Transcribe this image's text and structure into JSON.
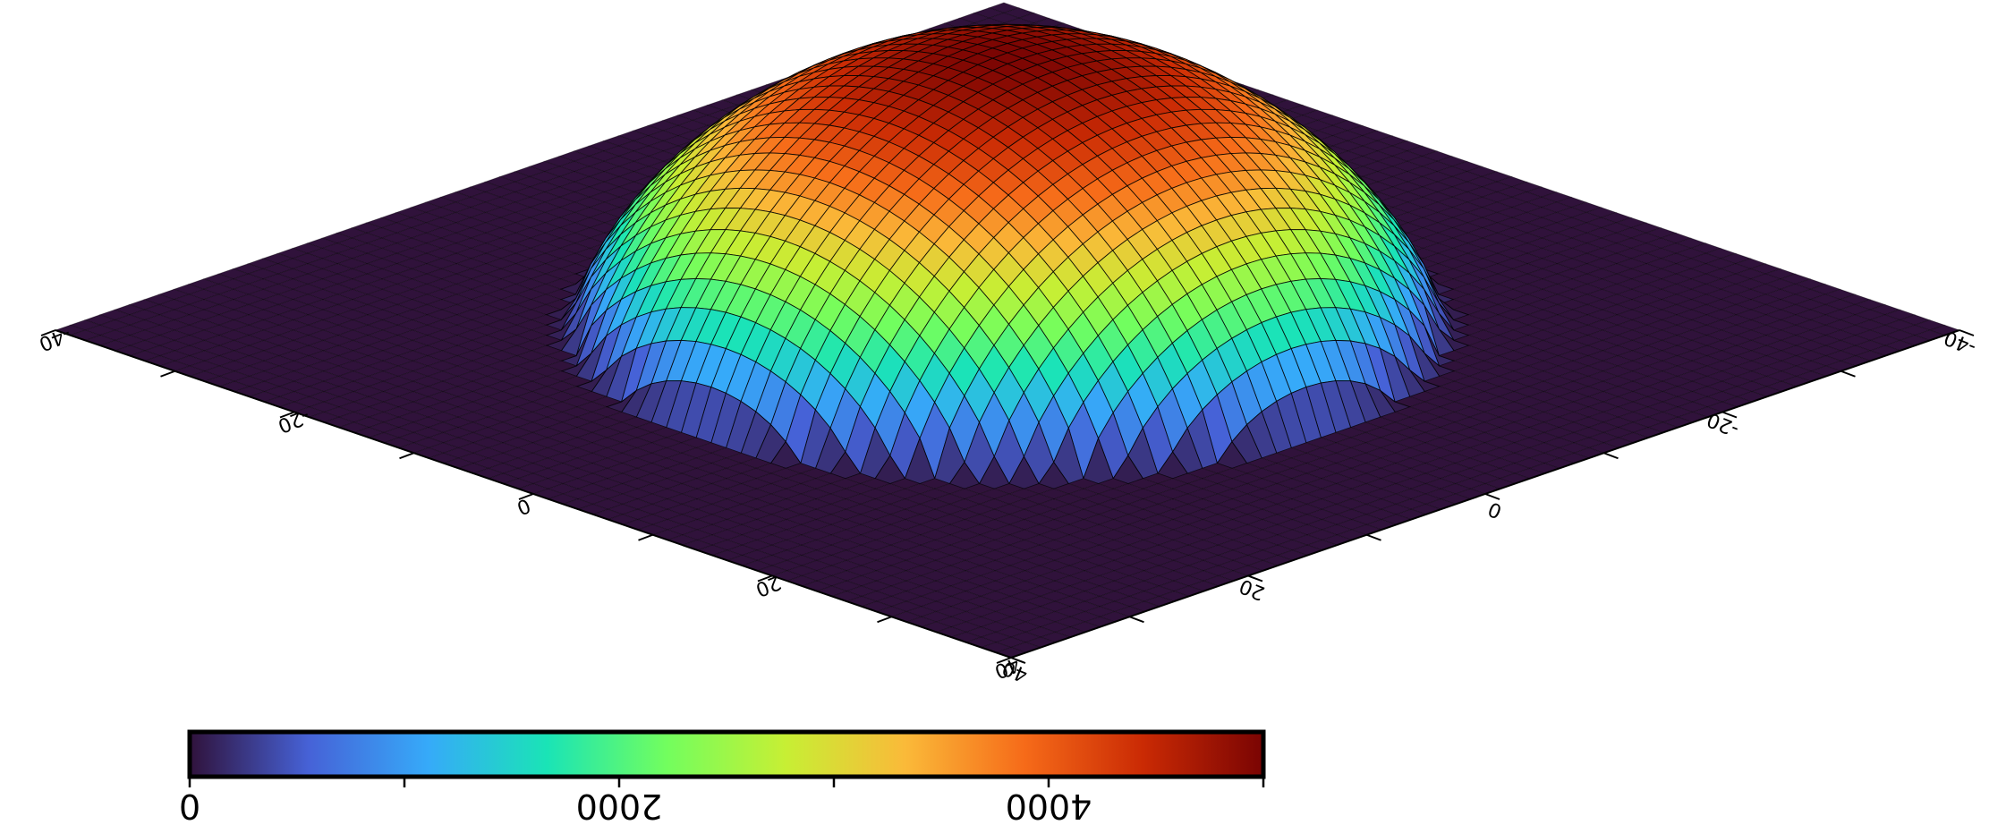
{
  "chart_data": {
    "type": "surface3d",
    "description_of_data": "gaussian-like dome z = f(x, y) on a square grid",
    "x_range": [
      -40,
      40
    ],
    "y_range": [
      -40,
      40
    ],
    "x_ticks": [
      -40,
      -30,
      -20,
      -10,
      0,
      10,
      20,
      30,
      40
    ],
    "x_tick_labels": [
      "-40",
      "-20",
      "0",
      "20",
      "40"
    ],
    "x_tick_label_values": [
      -40,
      -20,
      0,
      20,
      40
    ],
    "y_ticks": [
      -40,
      -30,
      -20,
      -10,
      0,
      10,
      20,
      30,
      40
    ],
    "y_tick_labels": [
      "-40",
      "-20",
      "0",
      "20",
      "40"
    ],
    "y_tick_label_values": [
      -40,
      -20,
      0,
      20,
      40
    ],
    "z_peak": 5000,
    "dome_radius": 26,
    "grid_resolution": 64,
    "colormap": "turbo",
    "mesh": true,
    "colorbar": {
      "range": [
        0,
        5000
      ],
      "ticks": [
        0,
        1000,
        2000,
        3000,
        4000,
        5000
      ],
      "labels": [
        "0",
        "2000",
        "4000"
      ],
      "label_values": [
        0,
        2000,
        4000
      ],
      "text_orientation": "upside-down"
    },
    "colors": {
      "floor": "#30123b",
      "mesh_line": "#000000",
      "stops": [
        "#30123b",
        "#4662d7",
        "#36aaf9",
        "#1ae4b6",
        "#72fe5e",
        "#c7ef34",
        "#faba39",
        "#f66b19",
        "#ca2a04",
        "#7a0403"
      ]
    }
  }
}
